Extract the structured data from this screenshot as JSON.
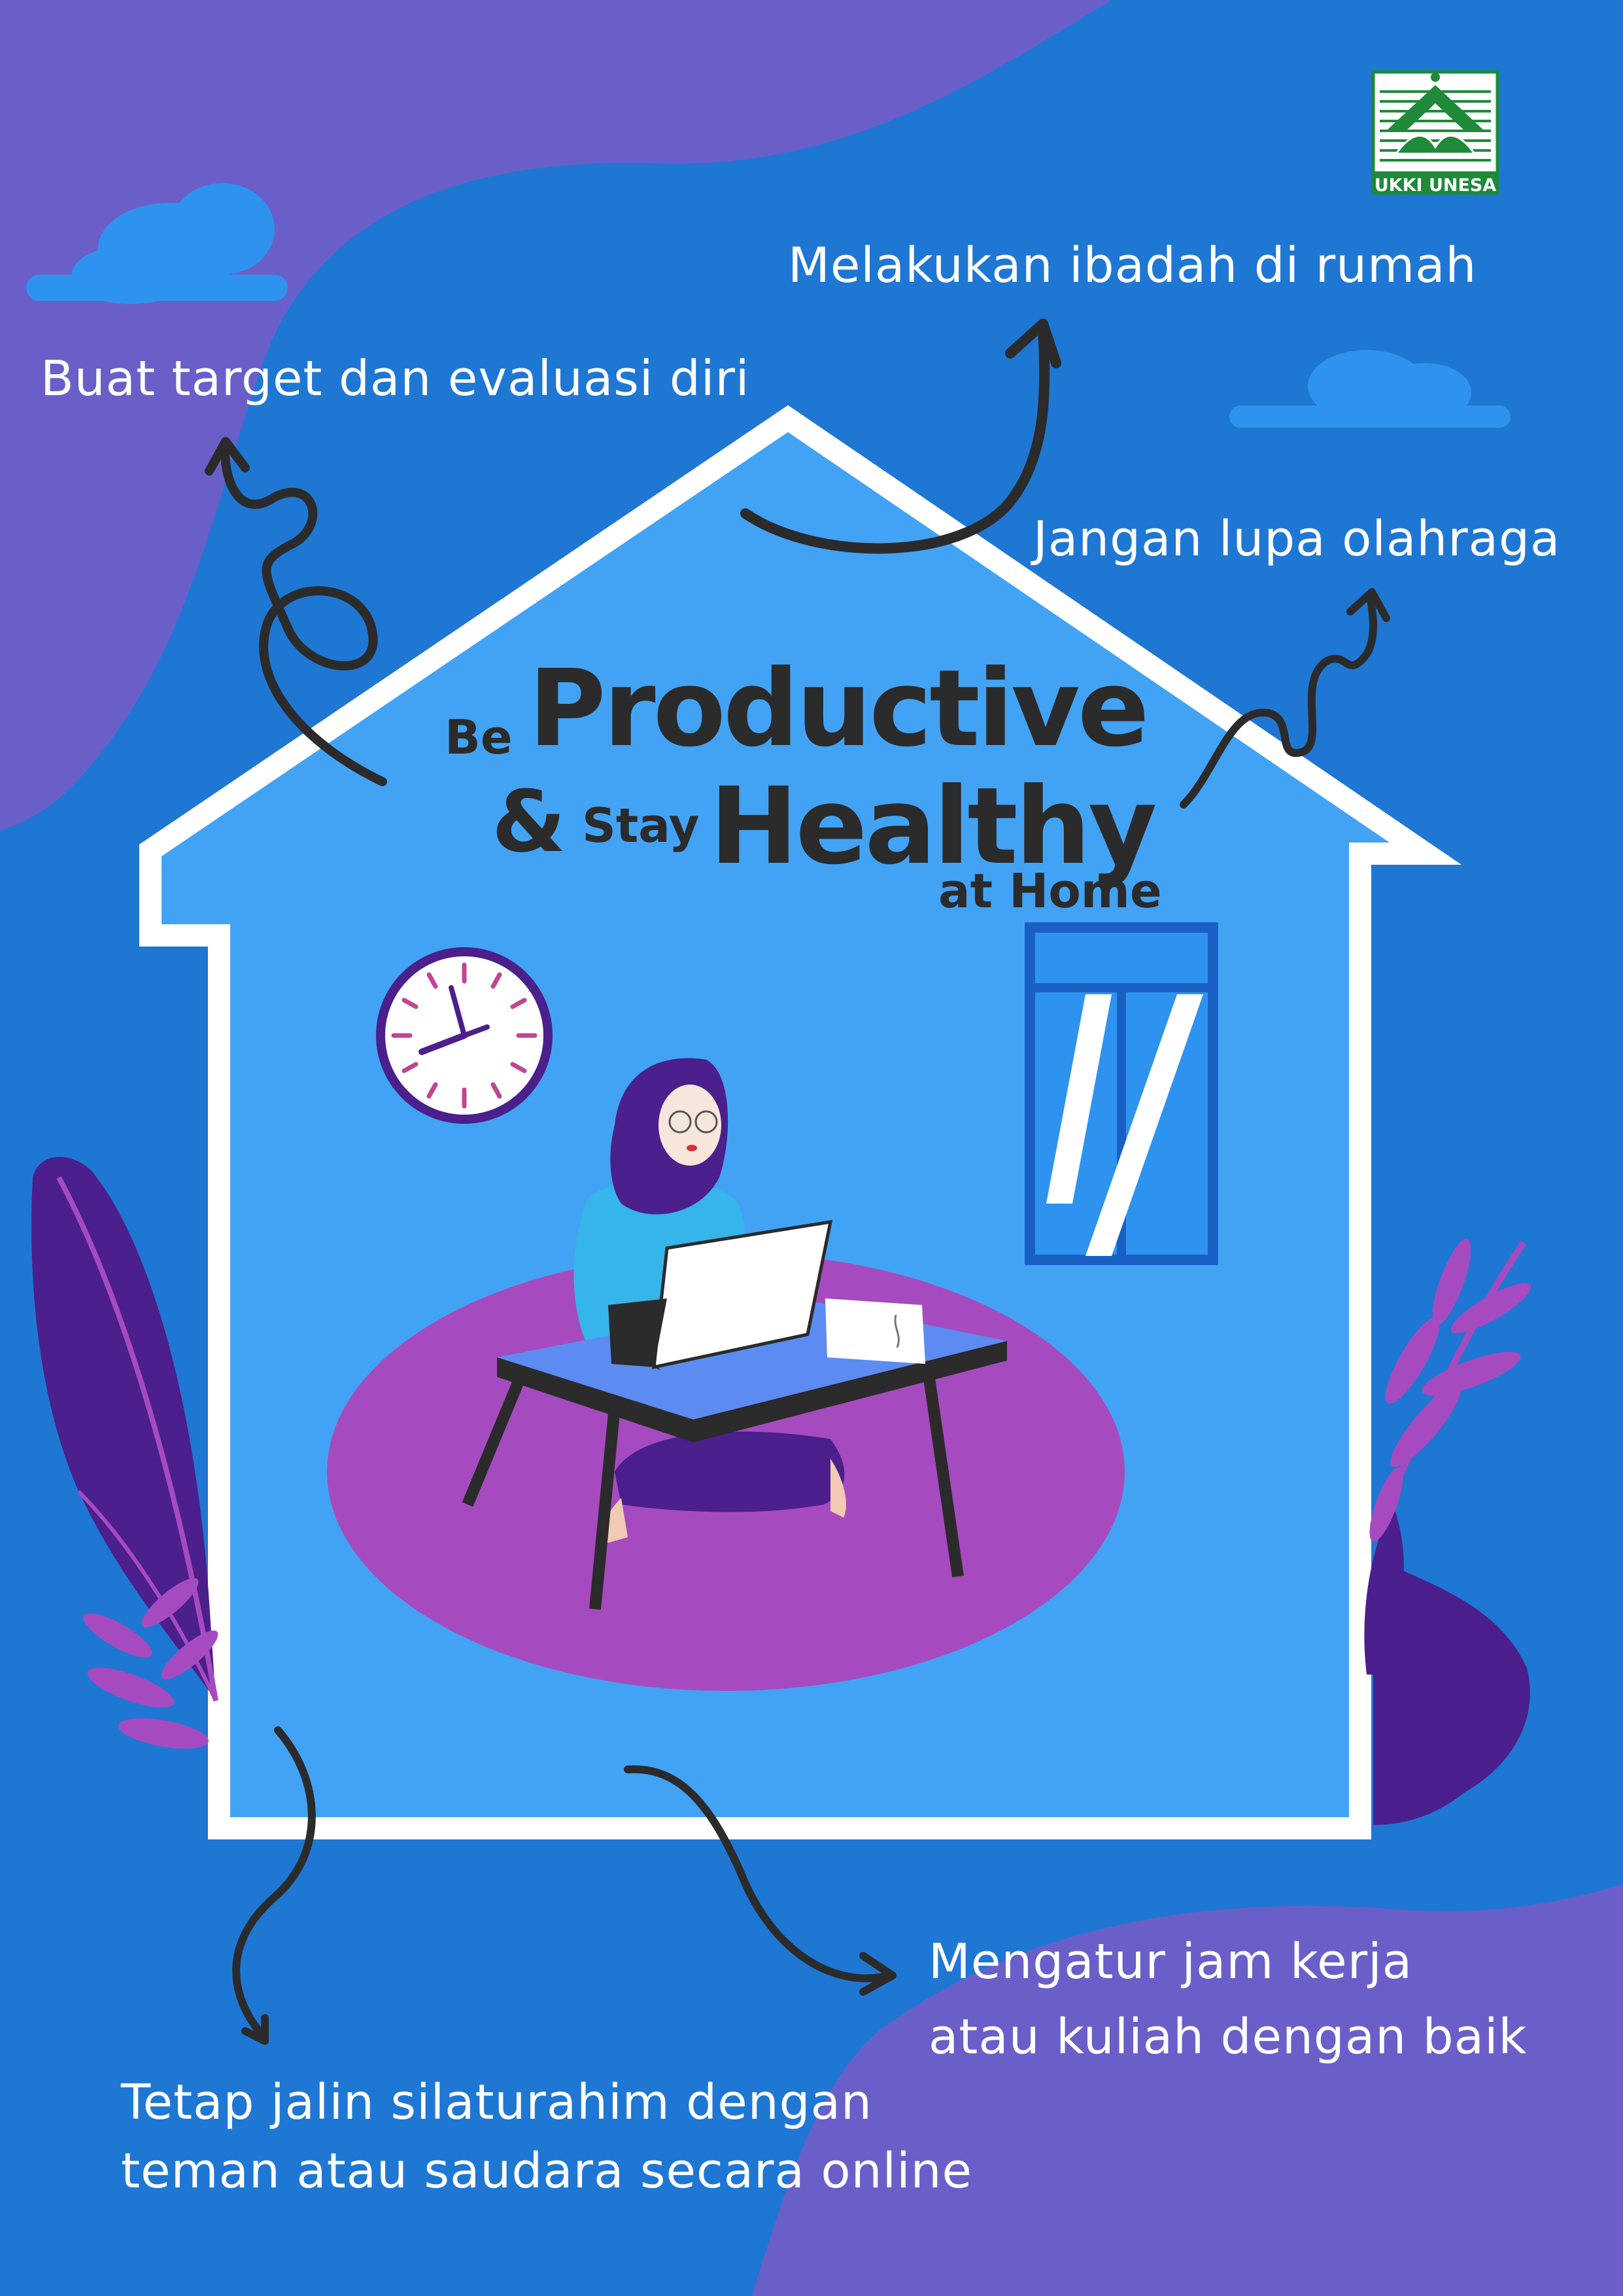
{
  "logo": {
    "text": "UKKI UNESA",
    "colors": {
      "green": "#1e8a3a",
      "frame": "#ffffff"
    }
  },
  "title": {
    "be": "Be",
    "productive": "Productive",
    "and": "&",
    "stay": "Stay",
    "healthy": "Healthy",
    "at_home": "at Home"
  },
  "tips": {
    "worship": "Melakukan ibadah di rumah",
    "targets": "Buat target dan evaluasi diri",
    "exercise": "Jangan lupa olahraga",
    "work_hours_line1": "Mengatur jam kerja",
    "work_hours_line2": "atau kuliah dengan baik",
    "friendship_line1": "Tetap jalin silaturahim dengan",
    "friendship_line2": "teman atau saudara secara online"
  },
  "colors": {
    "background": "#1f77d4",
    "blob": "#6a5fc9",
    "house_fill": "#42a3f5",
    "house_outline": "#ffffff",
    "rug": "#a64bbf",
    "arrow": "#2b2b2b",
    "text": "#ffffff"
  },
  "icons": [
    "cloud-icon",
    "clock-icon",
    "window-icon",
    "laptop-icon",
    "plant-icon",
    "arrow-icon"
  ]
}
